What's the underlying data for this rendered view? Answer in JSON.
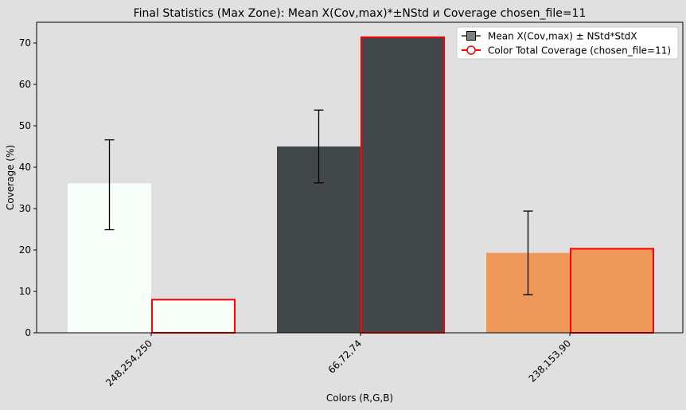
{
  "chart_data": {
    "type": "bar",
    "title": "Final Statistics (Max Zone): Mean X(Cov,max)*±NStd и Coverage chosen_file=11",
    "xlabel": "Colors (R,G,B)",
    "ylabel": "Coverage (%)",
    "ylim": [
      0,
      75
    ],
    "yticks": [
      0,
      10,
      20,
      30,
      40,
      50,
      60,
      70
    ],
    "grid": false,
    "legend_position": "top-right",
    "categories": [
      "248,254,250",
      "66,72,74",
      "238,153,90"
    ],
    "category_colors": [
      "#f8fefa",
      "#42484a",
      "#ee995a"
    ],
    "series": [
      {
        "name": "Mean X(Cov,max) ± NStd*StdX",
        "values": [
          36.1,
          45.0,
          19.3
        ],
        "error_low": [
          24.9,
          36.2,
          9.2
        ],
        "error_high": [
          46.6,
          53.8,
          29.4
        ],
        "edge_color": "none"
      },
      {
        "name": "Color Total Coverage (chosen_file=11)",
        "values": [
          8.0,
          71.4,
          20.3
        ],
        "edge_color": "#ff0000"
      }
    ]
  }
}
